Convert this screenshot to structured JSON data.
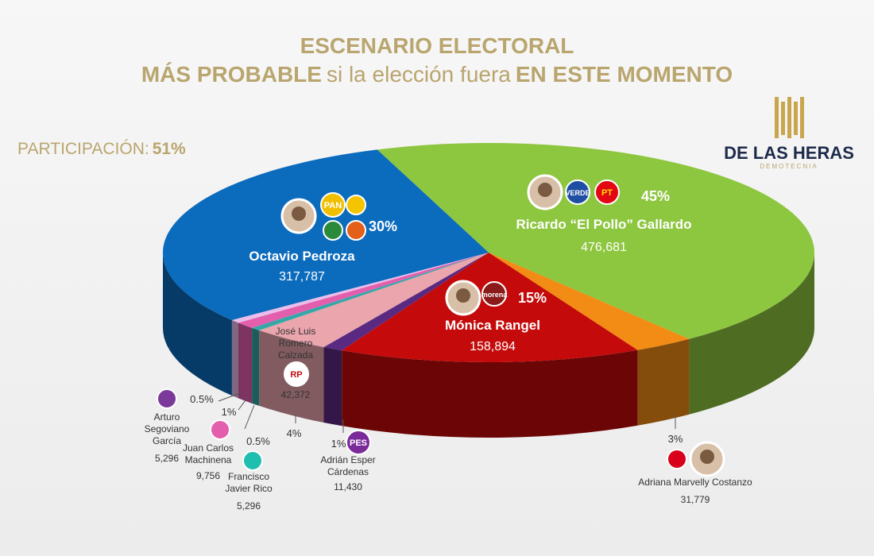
{
  "chart_data": {
    "type": "pie",
    "title": "ESCENARIO ELECTORAL",
    "subtitle_parts": [
      "MÁS PROBABLE",
      "si la elección fuera",
      "EN ESTE MOMENTO"
    ],
    "participation": {
      "label": "PARTICIPACIÓN:",
      "value": 51,
      "value_label": "51%"
    },
    "brand": {
      "name": "DE LAS HERAS",
      "tagline": "DEMOTECNIA"
    },
    "categories": [
      "Ricardo “El Pollo” Gallardo",
      "Adriana Marvelly Costanzo",
      "Mónica Rangel",
      "Adrián Esper Cárdenas",
      "José Luis Romero Calzada",
      "Francisco Javier Rico",
      "Juan Carlos Machinena",
      "Arturo Segoviano García",
      "Octavio Pedroza"
    ],
    "values": [
      45,
      3,
      15,
      1,
      4,
      0.5,
      1,
      0.5,
      30
    ],
    "value_labels": [
      "45%",
      "3%",
      "15%",
      "1%",
      "4%",
      "0.5%",
      "1%",
      "0.5%",
      "30%"
    ],
    "votes": [
      476681,
      31779,
      158894,
      11430,
      42372,
      5296,
      9756,
      5296,
      317787
    ],
    "votes_labels": [
      "476,681",
      "31,779",
      "158,894",
      "11,430",
      "42,372",
      "5,296",
      "9,756",
      "5,296",
      "317,787"
    ],
    "colors": [
      "#8dc63f",
      "#f28c14",
      "#c40a0a",
      "#5a2a82",
      "#eaa5ad",
      "#34a8a8",
      "#e35fae",
      "#eabdeb",
      "#0b6bbd"
    ],
    "party_logos": [
      [
        "VERDE",
        "PT"
      ],
      [],
      [
        "morena"
      ],
      [
        "PES"
      ],
      [
        "RP"
      ],
      [],
      [],
      [],
      [
        "PAN"
      ]
    ]
  }
}
